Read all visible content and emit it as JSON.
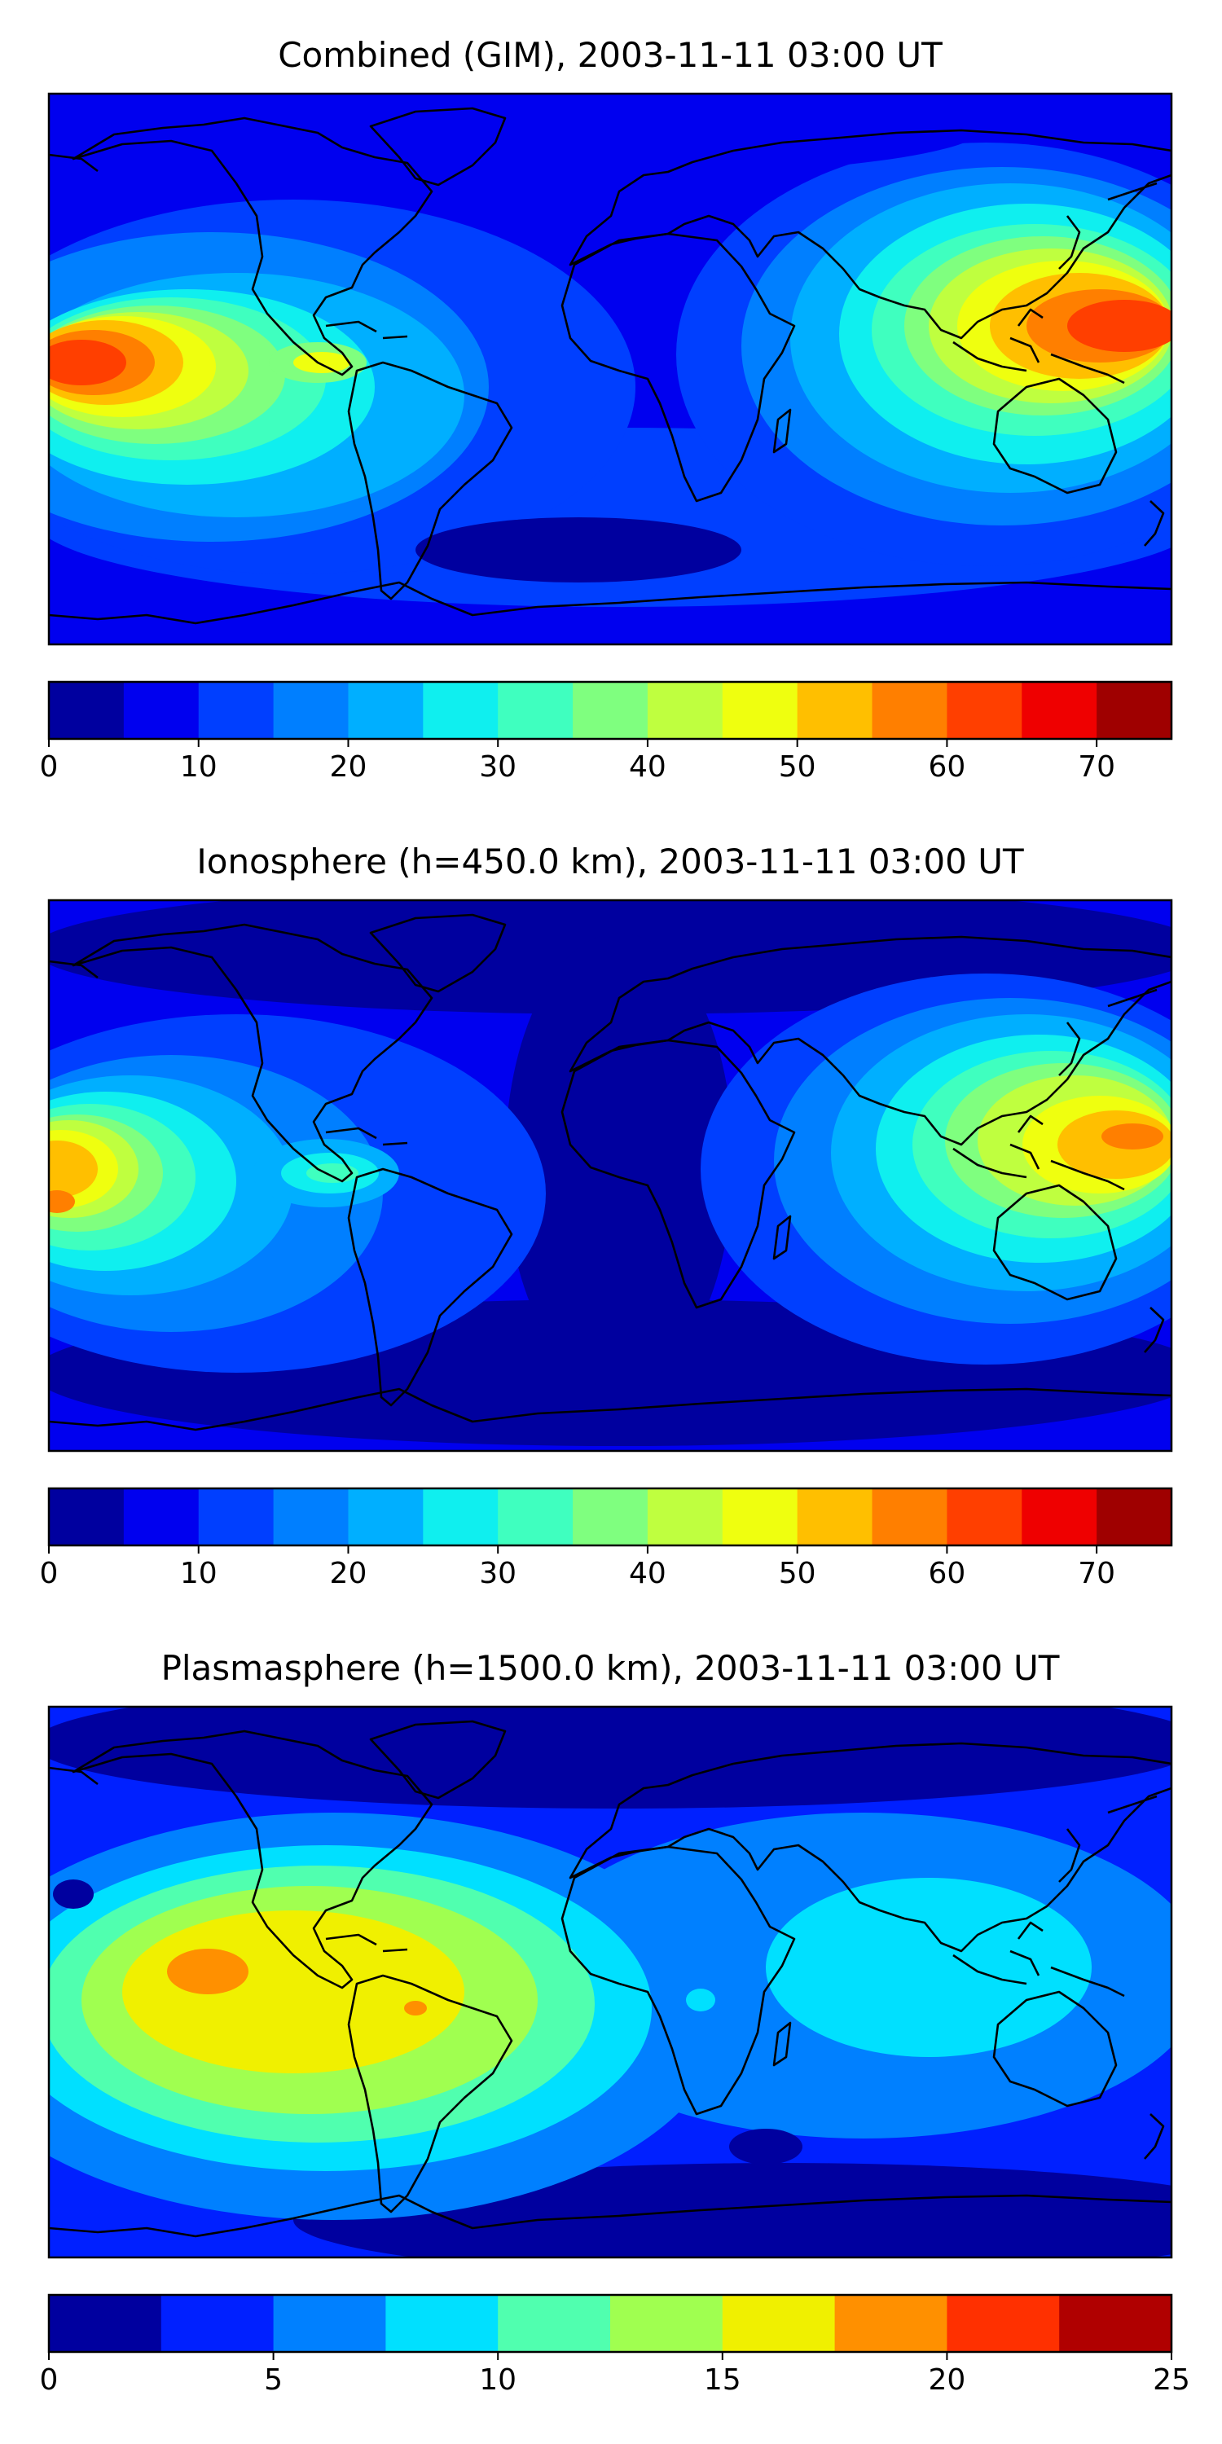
{
  "figure": {
    "panels": [
      {
        "title": "Combined (GIM), 2003-11-11 03:00 UT",
        "colorbar": {
          "ticks": [
            "0",
            "10",
            "20",
            "30",
            "40",
            "50",
            "60",
            "70"
          ],
          "colors": [
            "#00009f",
            "#0000ef",
            "#003fff",
            "#007fff",
            "#00afff",
            "#0fefef",
            "#3fffbf",
            "#7fff7f",
            "#bfff3f",
            "#efff0f",
            "#ffbf00",
            "#ff7f00",
            "#ff3f00",
            "#ef0000",
            "#9f0000"
          ]
        }
      },
      {
        "title": "Ionosphere  (h=450.0 km), 2003-11-11 03:00 UT",
        "colorbar": {
          "ticks": [
            "0",
            "10",
            "20",
            "30",
            "40",
            "50",
            "60",
            "70"
          ],
          "colors": [
            "#00009f",
            "#0000ef",
            "#003fff",
            "#007fff",
            "#00afff",
            "#0fefef",
            "#3fffbf",
            "#7fff7f",
            "#bfff3f",
            "#efff0f",
            "#ffbf00",
            "#ff7f00",
            "#ff3f00",
            "#ef0000",
            "#9f0000"
          ]
        }
      },
      {
        "title": "Plasmasphere (h=1500.0 km), 2003-11-11 03:00 UT",
        "colorbar": {
          "ticks": [
            "0",
            "5",
            "10",
            "15",
            "20",
            "25"
          ],
          "colors": [
            "#00009f",
            "#0020ff",
            "#0080ff",
            "#00e0ff",
            "#50ffaf",
            "#a0ff50",
            "#f0f000",
            "#ff9000",
            "#ff3000",
            "#b00000"
          ]
        }
      }
    ]
  }
}
